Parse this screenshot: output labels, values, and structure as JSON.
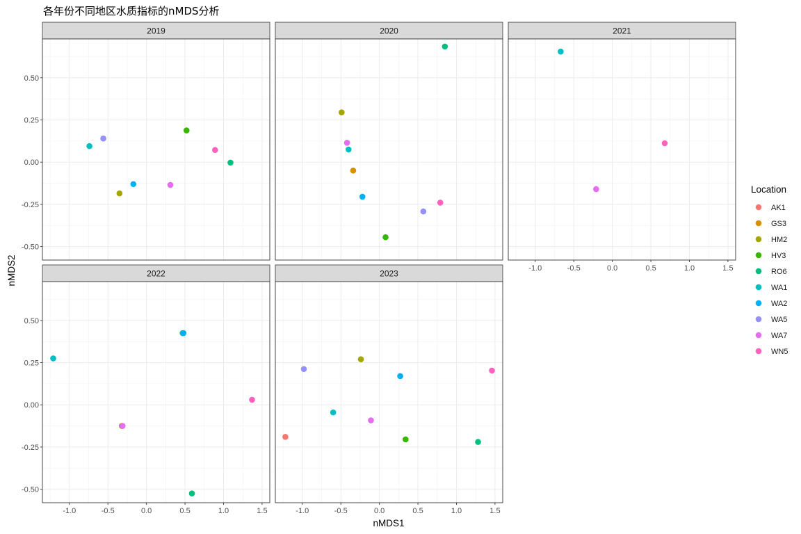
{
  "chart_data": {
    "type": "scatter",
    "title": "各年份不同地区水质指标的nMDS分析",
    "xlabel": "nMDS1",
    "ylabel": "nMDS2",
    "xlim": [
      -1.35,
      1.6
    ],
    "ylim": [
      -0.58,
      0.73
    ],
    "x_ticks": [
      -1.0,
      -0.5,
      0.0,
      0.5,
      1.0,
      1.5
    ],
    "x_tick_labels": [
      "-1.0",
      "-0.5",
      "0.0",
      "0.5",
      "1.0",
      "1.5"
    ],
    "y_ticks": [
      -0.5,
      -0.25,
      0.0,
      0.25,
      0.5
    ],
    "y_tick_labels": [
      "-0.50",
      "-0.25",
      "0.00",
      "0.25",
      "0.50"
    ],
    "grid": true,
    "legend": {
      "title": "Location",
      "position": "right",
      "entries": [
        {
          "name": "AK1",
          "color": "#F8766D"
        },
        {
          "name": "GS3",
          "color": "#D89000"
        },
        {
          "name": "HM2",
          "color": "#A3A500"
        },
        {
          "name": "HV3",
          "color": "#39B600"
        },
        {
          "name": "RO6",
          "color": "#00BF7D"
        },
        {
          "name": "WA1",
          "color": "#00BFC4"
        },
        {
          "name": "WA2",
          "color": "#00B0F6"
        },
        {
          "name": "WA5",
          "color": "#9590FF"
        },
        {
          "name": "WA7",
          "color": "#E76BF3"
        },
        {
          "name": "WN5",
          "color": "#FF62BC"
        }
      ]
    },
    "facets": [
      {
        "label": "2019",
        "points": [
          {
            "loc": "WA1",
            "x": -0.74,
            "y": 0.095
          },
          {
            "loc": "WA5",
            "x": -0.56,
            "y": 0.14
          },
          {
            "loc": "HM2",
            "x": -0.35,
            "y": -0.185
          },
          {
            "loc": "WA2",
            "x": -0.17,
            "y": -0.13
          },
          {
            "loc": "WA7",
            "x": 0.31,
            "y": -0.135
          },
          {
            "loc": "HV3",
            "x": 0.52,
            "y": 0.188
          },
          {
            "loc": "WN5",
            "x": 0.89,
            "y": 0.072
          },
          {
            "loc": "RO6",
            "x": 1.09,
            "y": -0.003
          }
        ]
      },
      {
        "label": "2020",
        "points": [
          {
            "loc": "RO6",
            "x": 0.85,
            "y": 0.685
          },
          {
            "loc": "HM2",
            "x": -0.49,
            "y": 0.295
          },
          {
            "loc": "WA7",
            "x": -0.42,
            "y": 0.115
          },
          {
            "loc": "WA1",
            "x": -0.4,
            "y": 0.075
          },
          {
            "loc": "GS3",
            "x": -0.34,
            "y": -0.05
          },
          {
            "loc": "WA2",
            "x": -0.22,
            "y": -0.205
          },
          {
            "loc": "WN5",
            "x": 0.79,
            "y": -0.24
          },
          {
            "loc": "WA5",
            "x": 0.57,
            "y": -0.292
          },
          {
            "loc": "HV3",
            "x": 0.08,
            "y": -0.445
          }
        ]
      },
      {
        "label": "2021",
        "points": [
          {
            "loc": "WA1",
            "x": -0.67,
            "y": 0.655
          },
          {
            "loc": "WN5",
            "x": 0.68,
            "y": 0.112
          },
          {
            "loc": "WA7",
            "x": -0.21,
            "y": -0.16
          }
        ]
      },
      {
        "label": "2022",
        "points": [
          {
            "loc": "WA1",
            "x": -1.21,
            "y": 0.275
          },
          {
            "loc": "RO6",
            "x": 0.47,
            "y": 0.425
          },
          {
            "loc": "WA2",
            "x": 0.48,
            "y": 0.425
          },
          {
            "loc": "WN5",
            "x": 1.37,
            "y": 0.03
          },
          {
            "loc": "HM2",
            "x": -0.32,
            "y": -0.125
          },
          {
            "loc": "WA7",
            "x": -0.31,
            "y": -0.125
          },
          {
            "loc": "RO6",
            "x": 0.59,
            "y": -0.525
          }
        ]
      },
      {
        "label": "2023",
        "points": [
          {
            "loc": "WA5",
            "x": -0.98,
            "y": 0.212
          },
          {
            "loc": "HM2",
            "x": -0.24,
            "y": 0.27
          },
          {
            "loc": "WA2",
            "x": 0.27,
            "y": 0.17
          },
          {
            "loc": "WN5",
            "x": 1.46,
            "y": 0.203
          },
          {
            "loc": "WA1",
            "x": -0.6,
            "y": -0.045
          },
          {
            "loc": "WA7",
            "x": -0.11,
            "y": -0.092
          },
          {
            "loc": "AK1",
            "x": -1.22,
            "y": -0.19
          },
          {
            "loc": "HV3",
            "x": 0.34,
            "y": -0.205
          },
          {
            "loc": "RO6",
            "x": 1.28,
            "y": -0.22
          }
        ]
      }
    ]
  }
}
